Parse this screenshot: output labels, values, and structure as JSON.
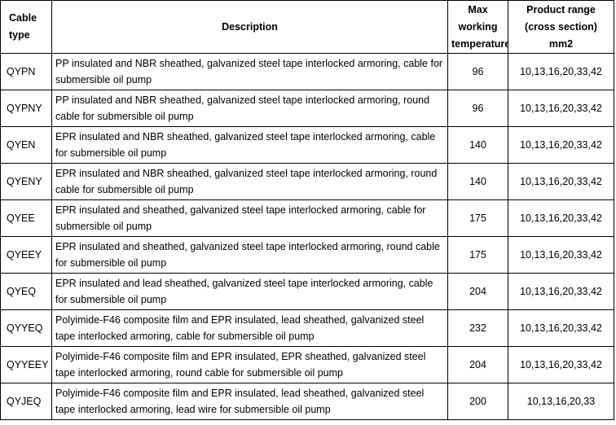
{
  "table": {
    "headers": {
      "cable_type": "Cable type",
      "description": "Description",
      "max_temp": "Max working temperature℃",
      "product_range": "Product range (cross section)  mm2"
    },
    "rows": [
      {
        "type": "QYPN",
        "description": "PP insulated and NBR sheathed, galvanized steel tape interlocked armoring, cable for submersible oil pump",
        "temp": "96",
        "range": "10,13,16,20,33,42"
      },
      {
        "type": "QYPNY",
        "description": "PP insulated and NBR sheathed, galvanized steel tape interlocked armoring, round cable for submersible oil pump",
        "temp": "96",
        "range": "10,13,16,20,33,42"
      },
      {
        "type": "QYEN",
        "description": "EPR insulated and NBR sheathed, galvanized steel tape interlocked armoring, cable for submersible oil pump",
        "temp": "140",
        "range": "10,13,16,20,33,42"
      },
      {
        "type": "QYENY",
        "description": "EPR insulated and NBR sheathed, galvanized steel tape interlocked armoring, round cable for submersible oil pump",
        "temp": "140",
        "range": "10,13,16,20,33,42"
      },
      {
        "type": "QYEE",
        "description": "EPR insulated and sheathed, galvanized steel tape interlocked armoring, cable for submersible oil pump",
        "temp": "175",
        "range": "10,13,16,20,33,42"
      },
      {
        "type": "QYEEY",
        "description": "EPR insulated and sheathed, galvanized steel tape interlocked armoring, round cable for submersible oil pump",
        "temp": "175",
        "range": "10,13,16,20,33,42"
      },
      {
        "type": "QYEQ",
        "description": "EPR insulated and lead sheathed, galvanized steel tape interlocked armoring, cable for submersible oil pump",
        "temp": "204",
        "range": "10,13,16,20,33,42"
      },
      {
        "type": "QYYEQ",
        "description": "Polyimide-F46 composite film and EPR insulated, lead sheathed, galvanized steel tape interlocked armoring, cable for submersible oil pump",
        "temp": "232",
        "range": "10,13,16,20,33,42"
      },
      {
        "type": "QYYEEY",
        "description": "Polyimide-F46 composite film and EPR insulated, EPR sheathed, galvanized steel tape interlocked armoring, round cable for submersible oil pump",
        "temp": "204",
        "range": "10,13,16,20,33,42"
      },
      {
        "type": "QYJEQ",
        "description": "Polyimide-F46 composite film and EPR insulated, lead sheathed, galvanized steel tape interlocked armoring, lead wire for submersible oil pump",
        "temp": "200",
        "range": "10,13,16,20,33"
      }
    ]
  }
}
